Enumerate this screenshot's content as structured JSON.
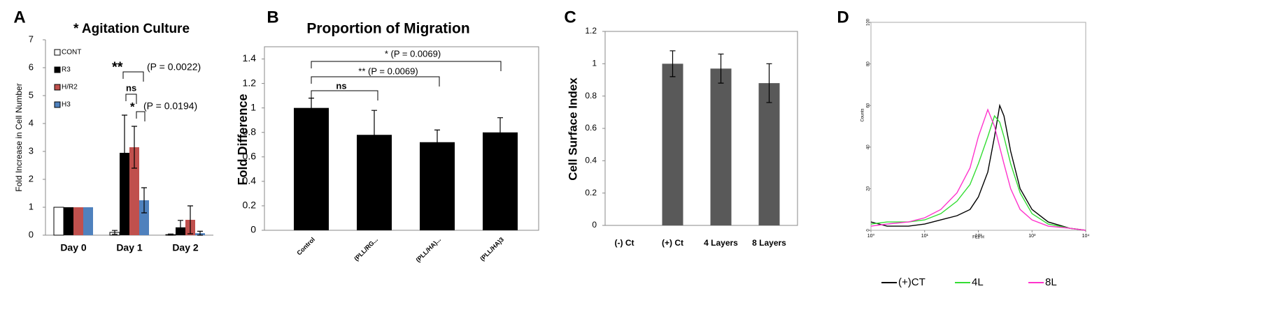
{
  "chart_data": [
    {
      "type": "bar",
      "panel_label": "A",
      "title": "* Agitation Culture",
      "y_label": "Fold Increase in Cell Number",
      "categories": [
        "Day 0",
        "Day 1",
        "Day 2"
      ],
      "series": [
        {
          "name": "CONT",
          "color": "#ffffff",
          "values": [
            1,
            0.1,
            0.02
          ],
          "errors": [
            0,
            0.07,
            0.02
          ]
        },
        {
          "name": "R3",
          "color": "#000000",
          "values": [
            1,
            2.95,
            0.28
          ],
          "errors": [
            0,
            1.35,
            0.25
          ]
        },
        {
          "name": "H/R2",
          "color": "#c0504d",
          "values": [
            1,
            3.15,
            0.55
          ],
          "errors": [
            0,
            0.75,
            0.5
          ]
        },
        {
          "name": "H3",
          "color": "#4f81bd",
          "values": [
            1,
            1.25,
            0.07
          ],
          "errors": [
            0,
            0.45,
            0.07
          ]
        }
      ],
      "ylim": [
        0,
        7
      ],
      "yticks": [
        0,
        1,
        2,
        3,
        4,
        5,
        6,
        7
      ],
      "annotations": [
        "**",
        "(P = 0.0022)",
        "ns",
        "*",
        "(P = 0.0194)"
      ]
    },
    {
      "type": "bar",
      "panel_label": "B",
      "title": "Proportion of Migration",
      "y_label": "Fold Difference",
      "categories": [
        "Control",
        "(PLL/RG...",
        "(PLL/HA)...",
        "(PLL/HA)3"
      ],
      "values": [
        1.0,
        0.78,
        0.72,
        0.8
      ],
      "errors": [
        0.08,
        0.2,
        0.1,
        0.12
      ],
      "color": "#000000",
      "ylim": [
        0,
        1.5
      ],
      "yticks": [
        0,
        0.2,
        0.4,
        0.6,
        0.8,
        1,
        1.2,
        1.4
      ],
      "annotations": [
        "ns",
        "** (P = 0.0069)",
        "* (P = 0.0069)"
      ]
    },
    {
      "type": "bar",
      "panel_label": "C",
      "y_label": "Cell Surface Index",
      "categories": [
        "(-) Ct",
        "(+) Ct",
        "4 Layers",
        "8 Layers"
      ],
      "values": [
        null,
        1.0,
        0.97,
        0.88
      ],
      "errors": [
        null,
        0.08,
        0.09,
        0.12
      ],
      "color": "#595959",
      "ylim": [
        0,
        1.2
      ],
      "yticks": [
        0,
        0.2,
        0.4,
        0.6,
        0.8,
        1,
        1.2
      ]
    },
    {
      "type": "line",
      "panel_label": "D",
      "y_label": "Counts",
      "x_label": "FL1-H",
      "xlog": true,
      "x": [
        1,
        2,
        5,
        10,
        20,
        40,
        70,
        100,
        150,
        200,
        250,
        300,
        400,
        600,
        1000,
        2000,
        5000,
        10000
      ],
      "series": [
        {
          "name": "(+)CT",
          "color": "#000000",
          "values": [
            4,
            2,
            2,
            3,
            5,
            7,
            10,
            16,
            28,
            45,
            60,
            55,
            38,
            20,
            10,
            4,
            1,
            0
          ]
        },
        {
          "name": "4L",
          "color": "#33dd33",
          "values": [
            3,
            4,
            4,
            5,
            8,
            14,
            22,
            32,
            45,
            55,
            52,
            45,
            32,
            18,
            8,
            3,
            1,
            0
          ]
        },
        {
          "name": "8L",
          "color": "#ff33cc",
          "values": [
            2,
            3,
            4,
            6,
            10,
            18,
            30,
            45,
            58,
            50,
            40,
            32,
            20,
            10,
            5,
            2,
            1,
            0
          ]
        }
      ],
      "xlim": [
        1,
        10000
      ],
      "xticks": [
        {
          "value": 1,
          "label": "10⁰"
        },
        {
          "value": 10,
          "label": "10¹"
        },
        {
          "value": 100,
          "label": "10²"
        },
        {
          "value": 1000,
          "label": "10³"
        },
        {
          "value": 10000,
          "label": "10⁴"
        }
      ],
      "ylim": [
        0,
        100
      ],
      "yticks": [
        0,
        20,
        40,
        60,
        80,
        100
      ]
    }
  ]
}
